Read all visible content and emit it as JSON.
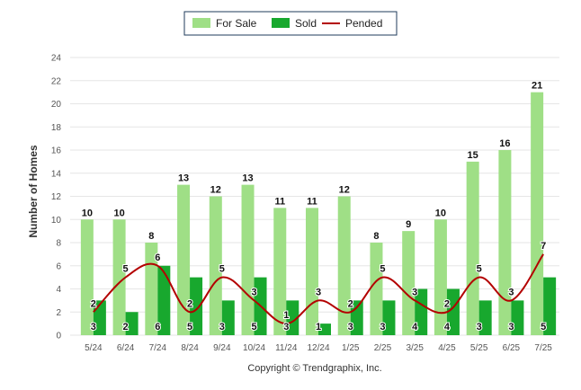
{
  "chart_data": {
    "type": "bar",
    "categories": [
      "5/24",
      "6/24",
      "7/24",
      "8/24",
      "9/24",
      "10/24",
      "11/24",
      "12/24",
      "1/25",
      "2/25",
      "3/25",
      "4/25",
      "5/25",
      "6/25",
      "7/25"
    ],
    "series": [
      {
        "name": "For Sale",
        "kind": "bar",
        "color": "#9fdf86",
        "values": [
          10,
          10,
          8,
          13,
          12,
          13,
          11,
          11,
          12,
          8,
          9,
          10,
          15,
          16,
          21
        ]
      },
      {
        "name": "Sold",
        "kind": "bar",
        "color": "#18a82e",
        "values": [
          3,
          2,
          6,
          5,
          3,
          5,
          3,
          1,
          3,
          3,
          4,
          4,
          3,
          3,
          5
        ]
      },
      {
        "name": "Pended",
        "kind": "line",
        "color": "#b30000",
        "values": [
          2,
          5,
          6,
          2,
          5,
          3,
          1,
          3,
          2,
          5,
          3,
          2,
          5,
          3,
          7
        ]
      }
    ],
    "title": "",
    "xlabel": "",
    "ylabel": "Number of Homes",
    "ylim": [
      0,
      24
    ],
    "yticks": [
      0,
      2,
      4,
      6,
      8,
      10,
      12,
      14,
      16,
      18,
      20,
      22,
      24
    ],
    "grid": true,
    "legend_placement": "top-center",
    "footer": "Copyright © Trendgraphix, Inc."
  }
}
